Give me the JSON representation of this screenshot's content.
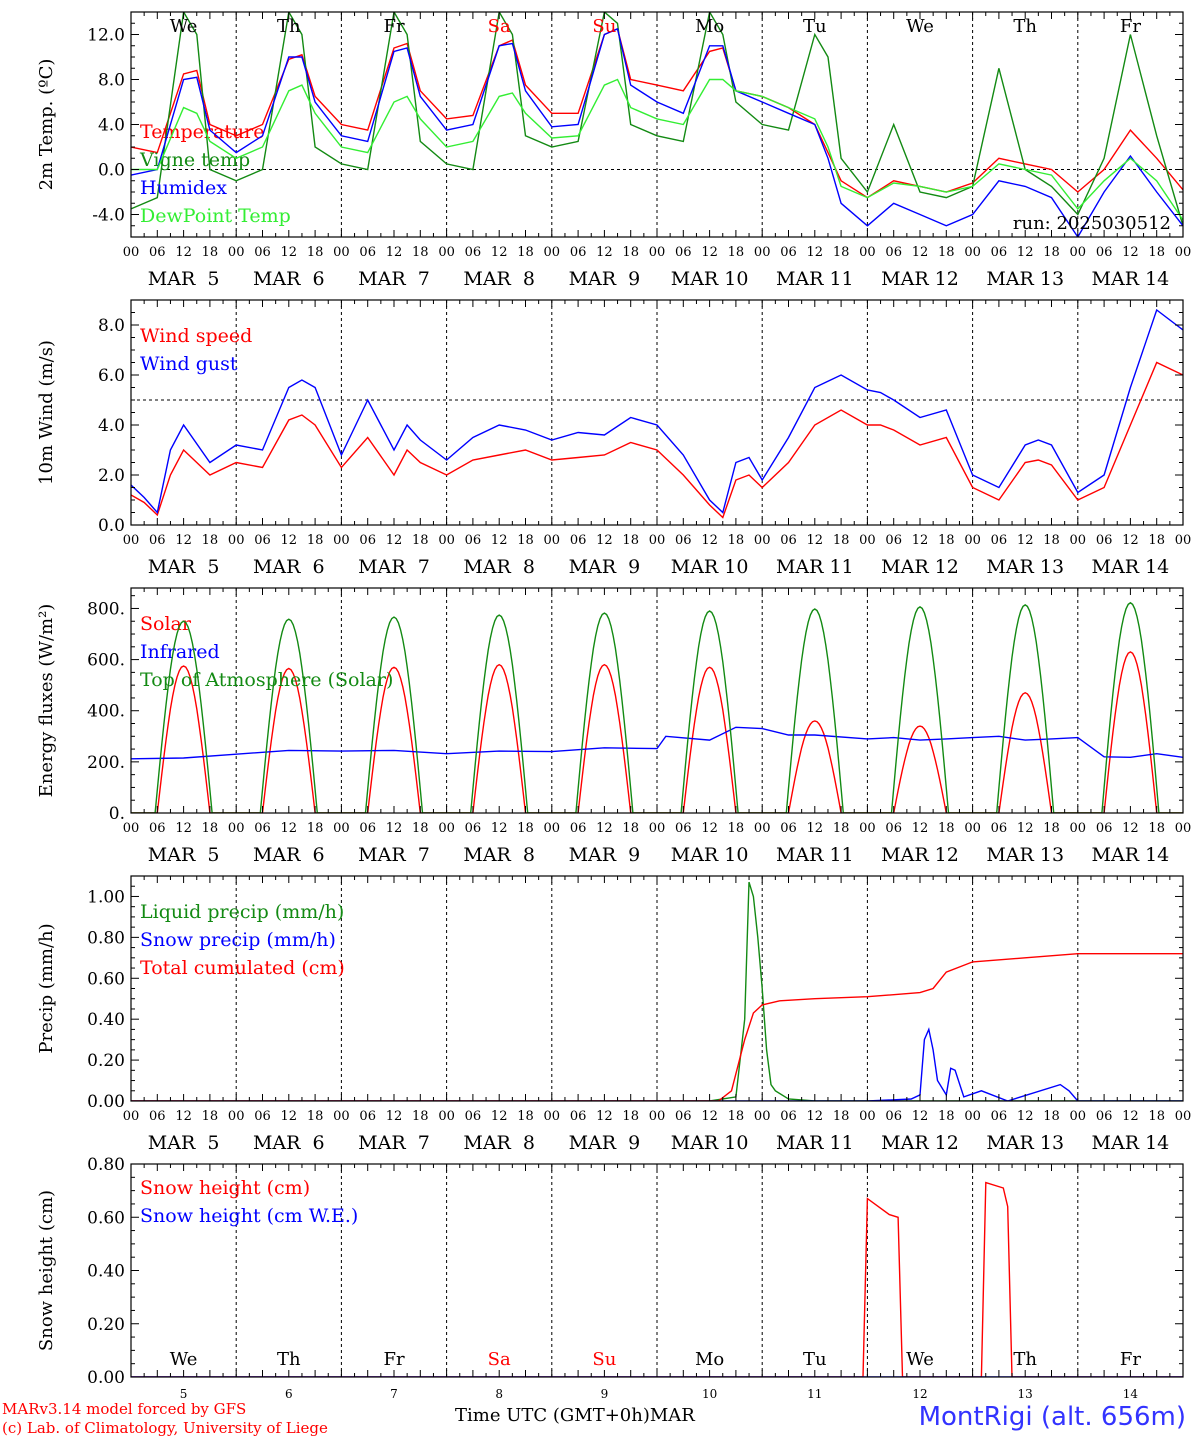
{
  "footer": {
    "model_line": "MARv3.14 model forced by GFS",
    "lab_line": "(c) Lab. of Climatology, University of Liege",
    "axis_title": "Time UTC (GMT+0h)",
    "month": "MAR",
    "station": "MontRigi (alt. 656m)"
  },
  "chart_data": [
    {
      "type": "line",
      "ylabel": "2m Temp. (ºC)",
      "ylim": [
        -6,
        14
      ],
      "yticks": [
        -4,
        0,
        4,
        8,
        12
      ],
      "yticklabels": [
        "-4.0",
        "0.0",
        "4.0",
        "8.0",
        "12.0"
      ],
      "dashed_reference": 0,
      "run_label": "run: 2025030512",
      "weekday_labels": [
        "We",
        "Th",
        "Fr",
        "Sa",
        "Su",
        "Mo",
        "Tu",
        "We",
        "Th",
        "Fr"
      ],
      "weekday_colors": [
        "#000000",
        "#000000",
        "#000000",
        "#ff0000",
        "#ff0000",
        "#000000",
        "#000000",
        "#000000",
        "#000000",
        "#000000"
      ],
      "hour_labels": [
        "00",
        "06",
        "12",
        "18"
      ],
      "date_labels": [
        "MAR  5",
        "MAR  6",
        "MAR  7",
        "MAR  8",
        "MAR  9",
        "MAR 10",
        "MAR 11",
        "MAR 12",
        "MAR 13",
        "MAR 14"
      ],
      "x_unit": "hours since MAR 5 00 UTC",
      "series": [
        {
          "name": "Temperature",
          "color": "#ff0000",
          "x": [
            0,
            6,
            12,
            15,
            18,
            24,
            30,
            36,
            39,
            42,
            48,
            54,
            60,
            63,
            66,
            72,
            78,
            84,
            87,
            90,
            96,
            102,
            108,
            111,
            114,
            120,
            126,
            132,
            135,
            138,
            144,
            150,
            156,
            159,
            162,
            168,
            174,
            180,
            186,
            192,
            198,
            204,
            210,
            216,
            222,
            228,
            234,
            240
          ],
          "y": [
            2.0,
            1.5,
            8.5,
            8.8,
            4.0,
            3.0,
            4.0,
            9.8,
            10.2,
            6.5,
            4.0,
            3.5,
            10.8,
            11.2,
            7.0,
            4.5,
            4.8,
            11.0,
            11.5,
            7.5,
            5.0,
            5.0,
            12.0,
            12.5,
            8.0,
            7.5,
            7.0,
            10.5,
            10.8,
            7.0,
            6.5,
            5.5,
            4.0,
            1.5,
            -1.0,
            -2.5,
            -1.0,
            -1.5,
            -2.0,
            -1.2,
            1.0,
            0.5,
            0.0,
            -2.0,
            0.0,
            3.5,
            1.0,
            -1.8
          ]
        },
        {
          "name": "Vigne temp",
          "color": "#138a13",
          "x": [
            0,
            6,
            12,
            15,
            18,
            24,
            30,
            36,
            39,
            42,
            48,
            54,
            60,
            63,
            66,
            72,
            78,
            84,
            87,
            90,
            96,
            102,
            108,
            111,
            114,
            120,
            126,
            132,
            135,
            138,
            144,
            150,
            156,
            159,
            162,
            168,
            174,
            180,
            186,
            192,
            198,
            204,
            210,
            216,
            222,
            228,
            234,
            240
          ],
          "y": [
            -3.5,
            -2.5,
            14.0,
            12.0,
            0.0,
            -1.0,
            0.0,
            14.0,
            12.0,
            2.0,
            0.5,
            0.0,
            14.0,
            12.0,
            2.5,
            0.5,
            0.0,
            14.0,
            12.0,
            3.0,
            2.0,
            2.5,
            14.0,
            13.0,
            4.0,
            3.0,
            2.5,
            14.0,
            12.0,
            6.0,
            4.0,
            3.5,
            12.0,
            10.0,
            1.0,
            -2.0,
            4.0,
            -2.0,
            -2.5,
            -1.5,
            9.0,
            0.0,
            -1.5,
            -4.0,
            1.0,
            12.0,
            3.0,
            -5.0
          ]
        },
        {
          "name": "Humidex",
          "color": "#0000ff",
          "x": [
            0,
            6,
            12,
            15,
            18,
            24,
            30,
            36,
            39,
            42,
            48,
            54,
            60,
            63,
            66,
            72,
            78,
            84,
            87,
            90,
            96,
            102,
            108,
            111,
            114,
            120,
            126,
            132,
            135,
            138,
            144,
            150,
            156,
            159,
            162,
            168,
            174,
            180,
            186,
            192,
            198,
            204,
            210,
            216,
            222,
            228,
            234,
            240
          ],
          "y": [
            -0.5,
            0.0,
            8.0,
            8.2,
            3.5,
            1.5,
            3.0,
            10.0,
            10.0,
            6.0,
            3.0,
            2.5,
            10.5,
            10.8,
            6.5,
            3.5,
            4.0,
            11.0,
            11.2,
            7.0,
            3.8,
            4.0,
            12.0,
            12.5,
            7.5,
            6.0,
            5.0,
            11.0,
            11.0,
            7.0,
            6.0,
            5.0,
            4.0,
            1.0,
            -3.0,
            -5.0,
            -3.0,
            -4.0,
            -5.0,
            -4.0,
            -1.0,
            -1.5,
            -2.5,
            -6.0,
            -2.0,
            1.2,
            -2.0,
            -5.0
          ]
        },
        {
          "name": "DewPoint Temp",
          "color": "#33ee33",
          "x": [
            0,
            6,
            12,
            15,
            18,
            24,
            30,
            36,
            39,
            42,
            48,
            54,
            60,
            63,
            66,
            72,
            78,
            84,
            87,
            90,
            96,
            102,
            108,
            111,
            114,
            120,
            126,
            132,
            135,
            138,
            144,
            150,
            156,
            159,
            162,
            168,
            174,
            180,
            186,
            192,
            198,
            204,
            210,
            216,
            222,
            228,
            234,
            240
          ],
          "y": [
            0.0,
            0.0,
            5.5,
            5.0,
            2.5,
            1.0,
            2.0,
            7.0,
            7.5,
            5.0,
            2.0,
            1.5,
            6.0,
            6.5,
            4.5,
            2.0,
            2.5,
            6.5,
            6.8,
            5.0,
            2.8,
            3.0,
            7.5,
            8.0,
            5.5,
            4.5,
            4.0,
            8.0,
            8.0,
            7.0,
            6.5,
            5.5,
            4.5,
            2.0,
            -1.5,
            -2.5,
            -1.2,
            -1.5,
            -2.0,
            -1.5,
            0.5,
            0.0,
            -0.5,
            -3.5,
            -1.0,
            1.0,
            -1.0,
            -4.5
          ]
        }
      ]
    },
    {
      "type": "line",
      "ylabel": "10m Wind (m/s)",
      "ylim": [
        0,
        9
      ],
      "yticks": [
        0,
        2,
        4,
        6,
        8
      ],
      "yticklabels": [
        "0.0",
        "2.0",
        "4.0",
        "6.0",
        "8.0"
      ],
      "dashed_reference": 5,
      "hour_labels": [
        "00",
        "06",
        "12",
        "18"
      ],
      "date_labels": [
        "MAR  5",
        "MAR  6",
        "MAR  7",
        "MAR  8",
        "MAR  9",
        "MAR 10",
        "MAR 11",
        "MAR 12",
        "MAR 13",
        "MAR 14"
      ],
      "x_unit": "hours since MAR 5 00 UTC",
      "series": [
        {
          "name": "Wind speed",
          "color": "#ff0000",
          "x": [
            0,
            3,
            6,
            9,
            12,
            18,
            24,
            30,
            36,
            39,
            42,
            48,
            54,
            60,
            63,
            66,
            72,
            78,
            84,
            90,
            96,
            102,
            108,
            114,
            120,
            126,
            132,
            135,
            138,
            141,
            144,
            150,
            156,
            162,
            168,
            171,
            174,
            180,
            186,
            192,
            198,
            204,
            207,
            210,
            216,
            222,
            228,
            234,
            240
          ],
          "y": [
            1.2,
            0.9,
            0.4,
            2.0,
            3.0,
            2.0,
            2.5,
            2.3,
            4.2,
            4.4,
            4.0,
            2.3,
            3.5,
            2.0,
            3.0,
            2.5,
            2.0,
            2.6,
            2.8,
            3.0,
            2.6,
            2.7,
            2.8,
            3.3,
            3.0,
            2.0,
            0.8,
            0.3,
            1.8,
            2.0,
            1.5,
            2.5,
            4.0,
            4.6,
            4.0,
            4.0,
            3.8,
            3.2,
            3.5,
            1.5,
            1.0,
            2.5,
            2.6,
            2.4,
            1.0,
            1.5,
            4.0,
            6.5,
            6.0
          ]
        },
        {
          "name": "Wind gust",
          "color": "#0000ff",
          "x": [
            0,
            3,
            6,
            9,
            12,
            18,
            24,
            30,
            36,
            39,
            42,
            48,
            54,
            60,
            63,
            66,
            72,
            78,
            84,
            90,
            96,
            102,
            108,
            114,
            120,
            126,
            132,
            135,
            138,
            141,
            144,
            150,
            156,
            162,
            168,
            171,
            174,
            180,
            186,
            192,
            198,
            204,
            207,
            210,
            216,
            222,
            228,
            234,
            240
          ],
          "y": [
            1.6,
            1.1,
            0.5,
            3.0,
            4.0,
            2.5,
            3.2,
            3.0,
            5.5,
            5.8,
            5.5,
            2.8,
            5.0,
            3.0,
            4.0,
            3.4,
            2.6,
            3.5,
            4.0,
            3.8,
            3.4,
            3.7,
            3.6,
            4.3,
            4.0,
            2.8,
            1.0,
            0.5,
            2.5,
            2.7,
            1.8,
            3.5,
            5.5,
            6.0,
            5.4,
            5.3,
            5.0,
            4.3,
            4.6,
            2.0,
            1.5,
            3.2,
            3.4,
            3.2,
            1.3,
            2.0,
            5.5,
            8.6,
            7.8
          ]
        }
      ]
    },
    {
      "type": "line",
      "ylabel": "Energy fluxes (W/m²)",
      "ylim": [
        0,
        880
      ],
      "yticks": [
        0,
        200,
        400,
        600,
        800
      ],
      "yticklabels": [
        "0.",
        "200.",
        "400.",
        "600.",
        "800."
      ],
      "hour_labels": [
        "00",
        "06",
        "12",
        "18"
      ],
      "date_labels": [
        "MAR  5",
        "MAR  6",
        "MAR  7",
        "MAR  8",
        "MAR  9",
        "MAR 10",
        "MAR 11",
        "MAR 12",
        "MAR 13",
        "MAR 14"
      ],
      "x_unit": "hours since MAR 5 00 UTC",
      "series": [
        {
          "name": "Solar",
          "color": "#ff0000",
          "daily_peaks": [
            575,
            565,
            570,
            580,
            580,
            570,
            360,
            340,
            470,
            630
          ],
          "sunrise_hour": 6,
          "sunset_hour": 18
        },
        {
          "name": "Infrared",
          "color": "#0000ff",
          "x": [
            0,
            12,
            24,
            36,
            48,
            60,
            72,
            84,
            96,
            108,
            120,
            122,
            132,
            138,
            144,
            150,
            156,
            168,
            174,
            180,
            186,
            192,
            198,
            204,
            210,
            216,
            222,
            228,
            234,
            240
          ],
          "y": [
            212,
            215,
            230,
            245,
            242,
            245,
            232,
            242,
            240,
            255,
            252,
            300,
            285,
            335,
            330,
            305,
            305,
            290,
            295,
            285,
            290,
            295,
            300,
            285,
            290,
            295,
            220,
            218,
            232,
            218
          ]
        },
        {
          "name": "Top of Atmosphere (Solar)",
          "color": "#138a13",
          "daily_peaks": [
            750,
            758,
            766,
            774,
            782,
            790,
            798,
            806,
            814,
            822
          ],
          "sunrise_hour": 5.5,
          "sunset_hour": 18.5
        }
      ]
    },
    {
      "type": "line",
      "ylabel": "Precip (mm/h)",
      "ylim": [
        0,
        1.1
      ],
      "yticks": [
        0,
        0.2,
        0.4,
        0.6,
        0.8,
        1.0
      ],
      "yticklabels": [
        "0.00",
        "0.20",
        "0.40",
        "0.60",
        "0.80",
        "1.00"
      ],
      "hour_labels": [
        "00",
        "06",
        "12",
        "18"
      ],
      "date_labels": [
        "MAR  5",
        "MAR  6",
        "MAR  7",
        "MAR  8",
        "MAR  9",
        "MAR 10",
        "MAR 11",
        "MAR 12",
        "MAR 13",
        "MAR 14"
      ],
      "x_unit": "hours since MAR 5 00 UTC",
      "series": [
        {
          "name": "Liquid precip (mm/h)",
          "color": "#138a13",
          "x": [
            0,
            132,
            138,
            140,
            141,
            142,
            143,
            144,
            145,
            146,
            147,
            150,
            156,
            240
          ],
          "y": [
            0,
            0,
            0.02,
            0.4,
            1.07,
            1.0,
            0.8,
            0.55,
            0.25,
            0.08,
            0.05,
            0.01,
            0,
            0
          ]
        },
        {
          "name": "Snow precip (mm/h)",
          "color": "#0000ff",
          "x": [
            0,
            132,
            168,
            178,
            180,
            181,
            182,
            183,
            184,
            186,
            187,
            188,
            190,
            194,
            200,
            212,
            214,
            216,
            222,
            240
          ],
          "y": [
            0,
            0,
            0,
            0.01,
            0.03,
            0.3,
            0.35,
            0.25,
            0.1,
            0.03,
            0.16,
            0.15,
            0.02,
            0.05,
            0.0,
            0.08,
            0.05,
            0,
            0,
            0
          ]
        },
        {
          "name": "Total cumulated (cm)",
          "color": "#ff0000",
          "x": [
            0,
            134,
            137,
            140,
            142,
            144,
            148,
            156,
            168,
            180,
            183,
            186,
            192,
            204,
            216,
            240
          ],
          "y": [
            0,
            0,
            0.05,
            0.3,
            0.43,
            0.47,
            0.49,
            0.5,
            0.51,
            0.53,
            0.55,
            0.63,
            0.68,
            0.7,
            0.72,
            0.72
          ]
        }
      ]
    },
    {
      "type": "line",
      "ylabel": "Snow height (cm)",
      "ylim": [
        0,
        0.8
      ],
      "yticks": [
        0,
        0.2,
        0.4,
        0.6,
        0.8
      ],
      "yticklabels": [
        "0.00",
        "0.20",
        "0.40",
        "0.60",
        "0.80"
      ],
      "weekday_labels": [
        "We",
        "Th",
        "Fr",
        "Sa",
        "Su",
        "Mo",
        "Tu",
        "We",
        "Th",
        "Fr"
      ],
      "weekday_colors": [
        "#000000",
        "#000000",
        "#000000",
        "#ff0000",
        "#ff0000",
        "#000000",
        "#000000",
        "#000000",
        "#000000",
        "#000000"
      ],
      "day_numbers": [
        "5",
        "6",
        "7",
        "8",
        "9",
        "10",
        "11",
        "12",
        "13",
        "14"
      ],
      "x_unit": "hours since MAR 5 00 UTC",
      "series": [
        {
          "name": "Snow height (cm)",
          "color": "#ff0000",
          "x": [
            0,
            167,
            168,
            173,
            175,
            176,
            194,
            195,
            199,
            200,
            201,
            240
          ],
          "y": [
            0,
            0,
            0.67,
            0.61,
            0.6,
            0,
            0,
            0.73,
            0.71,
            0.64,
            0,
            0
          ]
        },
        {
          "name": "Snow height (cm W.E.)",
          "color": "#0000ff",
          "x": [
            0,
            240
          ],
          "y": [
            0,
            0
          ]
        }
      ]
    }
  ]
}
